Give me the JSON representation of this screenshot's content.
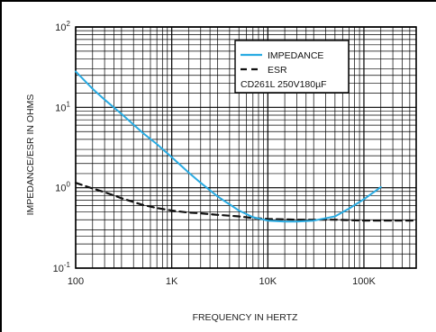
{
  "chart_data": {
    "type": "line",
    "title": "",
    "xlabel": "FREQUENCY IN HERTZ",
    "ylabel": "IMPEDANCE/ESR IN OHMS",
    "x_scale": "log",
    "y_scale": "log",
    "xlim": [
      100,
      350000
    ],
    "ylim": [
      0.1,
      100
    ],
    "grid": true,
    "x_tick_labels": [
      "100",
      "1K",
      "10K",
      "100K"
    ],
    "x_tick_values": [
      100,
      1000,
      10000,
      100000
    ],
    "y_tick_labels": [
      {
        "base": "10",
        "exp": "2",
        "value": 100
      },
      {
        "base": "10",
        "exp": "1",
        "value": 10
      },
      {
        "base": "10",
        "exp": "0",
        "value": 1
      },
      {
        "base": "10",
        "exp": "-1",
        "value": 0.1
      }
    ],
    "legend": {
      "placement": "top-right",
      "note": "CD261L 250V180µF"
    },
    "colors": {
      "impedance": "#29abe2",
      "esr": "#111111",
      "grid": "#000000"
    },
    "series": [
      {
        "name": "IMPEDANCE",
        "style": "solid",
        "x": [
          100,
          150,
          200,
          300,
          500,
          700,
          1000,
          1500,
          2000,
          3000,
          5000,
          7000,
          10000,
          15000,
          20000,
          30000,
          50000,
          70000,
          100000,
          150000
        ],
        "y": [
          28,
          17,
          12.5,
          8.3,
          4.8,
          3.5,
          2.4,
          1.55,
          1.15,
          0.78,
          0.52,
          0.43,
          0.39,
          0.38,
          0.38,
          0.39,
          0.44,
          0.55,
          0.72,
          1.02
        ]
      },
      {
        "name": "ESR",
        "style": "dashed",
        "x": [
          100,
          150,
          200,
          300,
          500,
          700,
          1000,
          1500,
          2000,
          3000,
          5000,
          7000,
          10000,
          20000,
          30000,
          50000,
          100000,
          200000,
          350000
        ],
        "y": [
          1.15,
          0.98,
          0.88,
          0.74,
          0.61,
          0.56,
          0.52,
          0.49,
          0.48,
          0.46,
          0.44,
          0.42,
          0.41,
          0.4,
          0.4,
          0.4,
          0.39,
          0.39,
          0.39
        ]
      }
    ]
  }
}
